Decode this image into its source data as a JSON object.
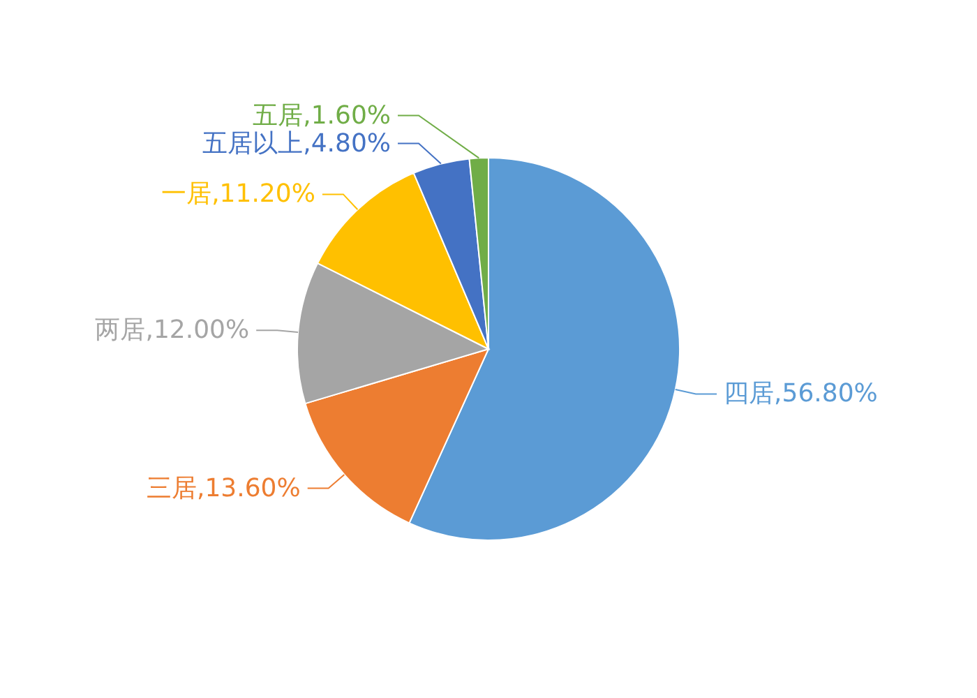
{
  "chart_data": {
    "type": "pie",
    "categories": [
      "四居",
      "三居",
      "两居",
      "一居",
      "五居以上",
      "五居"
    ],
    "values": [
      56.8,
      13.6,
      12.0,
      11.2,
      4.8,
      1.6
    ],
    "value_labels": [
      "56.80%",
      "13.60%",
      "12.00%",
      "11.20%",
      "4.80%",
      "1.60%"
    ],
    "colors": [
      "#5b9bd5",
      "#ed7d31",
      "#a5a5a5",
      "#ffc000",
      "#4472c4",
      "#70ad47"
    ]
  }
}
